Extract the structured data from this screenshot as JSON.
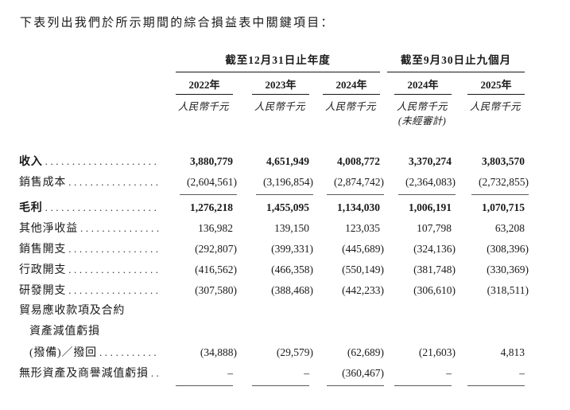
{
  "page": {
    "intro": "下表列出我們於所示期間的綜合損益表中關鍵項目："
  },
  "table": {
    "column_groups": [
      {
        "title": "截至12月31日止年度",
        "span": 3
      },
      {
        "title": "截至9月30日止九個月",
        "span": 2
      }
    ],
    "columns": [
      {
        "year": "2022年",
        "unit": "人民幣千元",
        "note": ""
      },
      {
        "year": "2023年",
        "unit": "人民幣千元",
        "note": ""
      },
      {
        "year": "2024年",
        "unit": "人民幣千元",
        "note": ""
      },
      {
        "year": "2024年",
        "unit": "人民幣千元",
        "note": "(未經審計)"
      },
      {
        "year": "2025年",
        "unit": "人民幣千元",
        "note": ""
      }
    ],
    "rows": [
      {
        "label": "收入",
        "bold": true,
        "dots": true,
        "indent": 0,
        "values": [
          "3,880,779",
          "4,651,949",
          "4,008,772",
          "3,370,274",
          "3,803,570"
        ]
      },
      {
        "label": "銷售成本",
        "bold": false,
        "dots": true,
        "indent": 0,
        "rule_below": true,
        "values": [
          "(2,604,561)",
          "(3,196,854)",
          "(2,874,742)",
          "(2,364,083)",
          "(2,732,855)"
        ]
      },
      {
        "label": "毛利",
        "bold": true,
        "dots": true,
        "indent": 0,
        "gap_above": true,
        "values": [
          "1,276,218",
          "1,455,095",
          "1,134,030",
          "1,006,191",
          "1,070,715"
        ]
      },
      {
        "label": "其他淨收益",
        "bold": false,
        "dots": true,
        "indent": 0,
        "values": [
          "136,982",
          "139,150",
          "123,035",
          "107,798",
          "63,208"
        ]
      },
      {
        "label": "銷售開支",
        "bold": false,
        "dots": true,
        "indent": 0,
        "values": [
          "(292,807)",
          "(399,331)",
          "(445,689)",
          "(324,136)",
          "(308,396)"
        ]
      },
      {
        "label": "行政開支",
        "bold": false,
        "dots": true,
        "indent": 0,
        "values": [
          "(416,562)",
          "(466,358)",
          "(550,149)",
          "(381,748)",
          "(330,369)"
        ]
      },
      {
        "label": "研發開支",
        "bold": false,
        "dots": true,
        "indent": 0,
        "values": [
          "(307,580)",
          "(388,468)",
          "(442,233)",
          "(306,610)",
          "(318,511)"
        ]
      },
      {
        "label": "貿易應收款項及合約",
        "bold": false,
        "dots": false,
        "indent": 0,
        "values": [
          "",
          "",
          "",
          "",
          ""
        ]
      },
      {
        "label": "資產減值虧損",
        "bold": false,
        "dots": false,
        "indent": 1,
        "values": [
          "",
          "",
          "",
          "",
          ""
        ]
      },
      {
        "label": "(撥備)／撥回",
        "bold": false,
        "dots": true,
        "indent": 1,
        "values": [
          "(34,888)",
          "(29,579)",
          "(62,689)",
          "(21,603)",
          "4,813"
        ]
      },
      {
        "label": "無形資產及商譽減值虧損",
        "bold": false,
        "dots": true,
        "indent": 0,
        "rule_below": true,
        "values": [
          "–",
          "–",
          "(360,467)",
          "–",
          "–"
        ]
      }
    ]
  }
}
